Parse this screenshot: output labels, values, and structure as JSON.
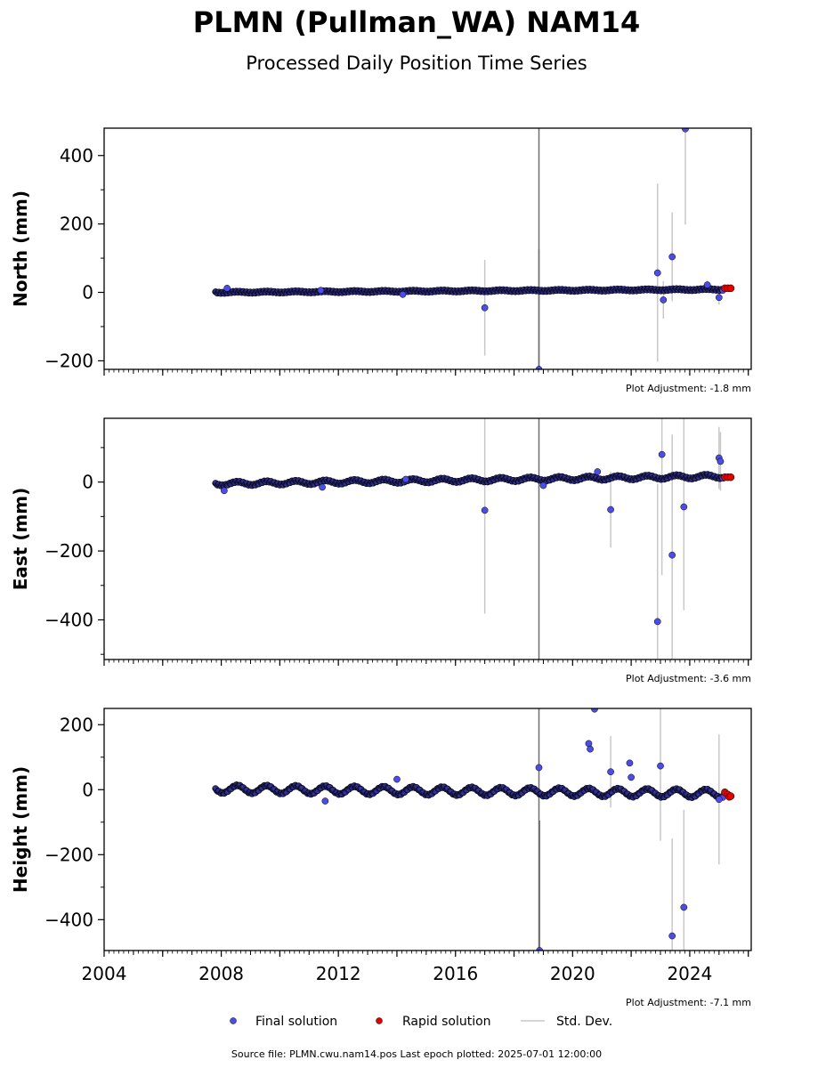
{
  "title": "PLMN (Pullman_WA) NAM14",
  "subtitle": "Processed Daily Position Time Series",
  "legend": {
    "final": "Final solution",
    "rapid": "Rapid solution",
    "stddev": "Std. Dev."
  },
  "footer": "Source file: PLMN.cwu.nam14.pos  Last epoch plotted: 2025-07-01 12:00:00",
  "colors": {
    "final": "#4c4ce6",
    "rapid": "#e00000",
    "edge": "#000000",
    "errbar": "#c8c8c8"
  },
  "chart_data": [
    {
      "type": "scatter",
      "ylabel": "North (mm)",
      "adjustment": "Plot Adjustment: -1.8 mm",
      "xlim": [
        2004.0,
        2026.1
      ],
      "ylim": [
        -225,
        480
      ],
      "yticks": [
        -200,
        0,
        200,
        400
      ],
      "trend": {
        "x0": 2007.8,
        "y0": 0,
        "slope": 0.5,
        "amp": 1.5
      },
      "series": [
        {
          "x": [
            2008.2,
            2011.4,
            2014.2,
            2017.0,
            2018.85,
            2022.9,
            2023.1,
            2023.4,
            2023.85,
            2024.6,
            2025.0
          ],
          "y": [
            12,
            6,
            -6,
            -45,
            -225,
            57,
            -22,
            104,
            478,
            22,
            -15
          ],
          "err": [
            5,
            5,
            5,
            140,
            350,
            260,
            55,
            130,
            280,
            12,
            20
          ]
        },
        {
          "x": [
            2025.2,
            2025.3,
            2025.4
          ],
          "y": [
            12,
            12,
            12
          ]
        }
      ]
    },
    {
      "type": "scatter",
      "ylabel": "East (mm)",
      "adjustment": "Plot Adjustment: -3.6 mm",
      "xlim": [
        2004.0,
        2026.1
      ],
      "ylim": [
        -515,
        185
      ],
      "yticks": [
        -400,
        -200,
        0
      ],
      "trend": {
        "x0": 2007.8,
        "y0": -5,
        "slope": 1.25,
        "amp": 5
      },
      "series": [
        {
          "x": [
            2008.1,
            2011.45,
            2014.3,
            2017.0,
            2019.0,
            2020.85,
            2021.3,
            2022.9,
            2023.05,
            2023.4,
            2023.8,
            2025.0,
            2025.05
          ],
          "y": [
            -25,
            -15,
            8,
            -82,
            -10,
            30,
            -80,
            -405,
            80,
            -212,
            -72,
            70,
            60
          ],
          "err": [
            5,
            5,
            5,
            300,
            5,
            5,
            110,
            400,
            350,
            350,
            300,
            90,
            85
          ]
        },
        {
          "x": [
            2025.2,
            2025.3,
            2025.4
          ],
          "y": [
            14,
            14,
            14
          ]
        }
      ]
    },
    {
      "type": "scatter",
      "ylabel": "Height (mm)",
      "adjustment": "Plot Adjustment: -7.1 mm",
      "xlim": [
        2004.0,
        2026.1
      ],
      "ylim": [
        -495,
        250
      ],
      "yticks": [
        -400,
        -200,
        0,
        200
      ],
      "trend": {
        "x0": 2007.8,
        "y0": 2,
        "slope": -0.8,
        "amp": 12
      },
      "series": [
        {
          "x": [
            2011.55,
            2014.0,
            2018.85,
            2018.87,
            2020.55,
            2020.6,
            2020.75,
            2021.3,
            2021.95,
            2022.0,
            2023.0,
            2023.4,
            2023.8,
            2025.0
          ],
          "y": [
            -35,
            32,
            68,
            -495,
            142,
            125,
            248,
            55,
            82,
            38,
            73,
            -450,
            -362,
            -30
          ],
          "err": [
            5,
            5,
            5,
            400,
            5,
            5,
            5,
            110,
            5,
            5,
            230,
            300,
            300,
            200
          ]
        },
        {
          "x": [
            2025.2,
            2025.3,
            2025.35,
            2025.4
          ],
          "y": [
            -8,
            -15,
            -22,
            -20
          ]
        }
      ]
    }
  ],
  "xtick_labels": [
    "2004",
    "2008",
    "2012",
    "2016",
    "2020",
    "2024"
  ]
}
